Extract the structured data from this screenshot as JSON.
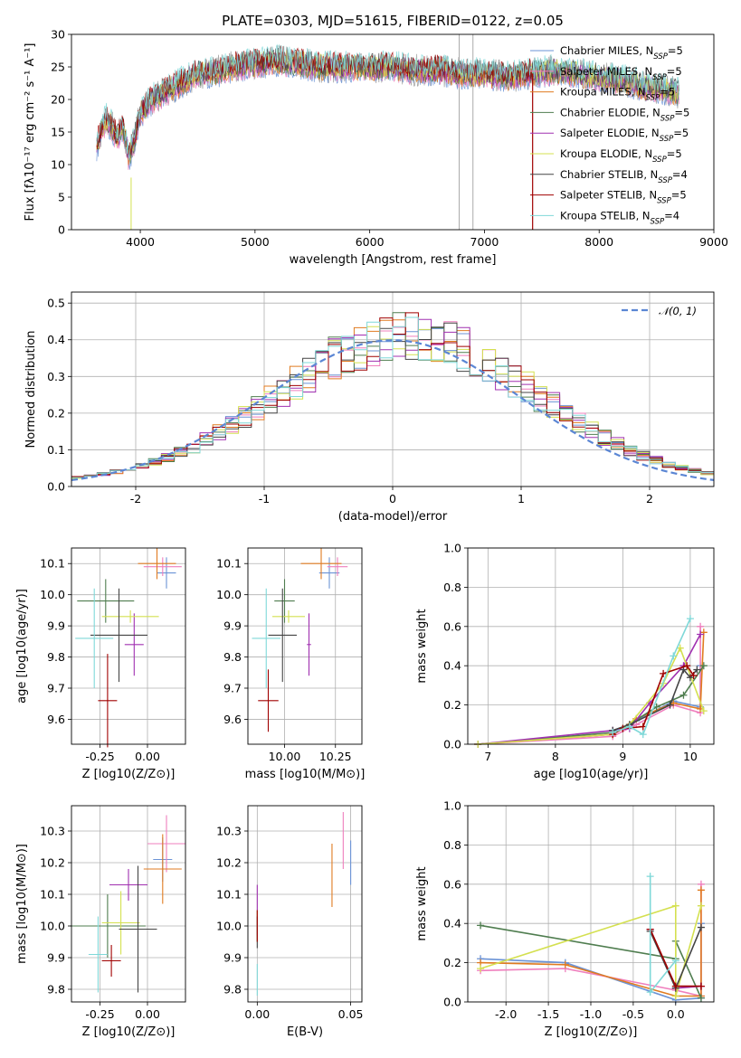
{
  "colors": {
    "Chabrier MILES": "#6b93d6",
    "Salpeter MILES": "#ef7fbd",
    "Kroupa MILES": "#e07b20",
    "Chabrier ELODIE": "#4f7d4f",
    "Salpeter ELODIE": "#a030b0",
    "Kroupa ELODIE": "#d4e050",
    "Chabrier STELIB": "#444444",
    "Salpeter STELIB": "#a00000",
    "Kroupa STELIB": "#7fd8d8"
  },
  "chart_data": [
    {
      "type": "line",
      "title": "PLATE=0303, MJD=51615, FIBERID=0122, z=0.05",
      "xlabel": "wavelength [Angstrom, rest frame]",
      "ylabel": "Flux [fλ10⁻¹⁷ erg cm⁻² s⁻¹ A⁻¹]",
      "xlim": [
        3400,
        9000
      ],
      "ylim": [
        0,
        30
      ],
      "xticks": [
        4000,
        5000,
        6000,
        7000,
        8000,
        9000
      ],
      "yticks": [
        0,
        5,
        10,
        15,
        20,
        25,
        30
      ],
      "data_color": "#aaaaaa",
      "continuum": {
        "x": [
          3620,
          3660,
          3700,
          3750,
          3800,
          3850,
          3900,
          3950,
          4000,
          4100,
          4200,
          4300,
          4400,
          4500,
          4600,
          4800,
          5000,
          5200,
          5400,
          5600,
          5800,
          6000,
          6200,
          6400,
          6600,
          6800,
          7000,
          7200,
          7400,
          7600,
          7800,
          8000,
          8200,
          8400,
          8600,
          8700
        ],
        "y": [
          13,
          15,
          17,
          16,
          14,
          16,
          11,
          14,
          18,
          20,
          21,
          22,
          23,
          24,
          24,
          25,
          25.5,
          26,
          25.5,
          25,
          25,
          25,
          25,
          24.5,
          24.5,
          24,
          24,
          23.5,
          24,
          24.5,
          24,
          23.5,
          23,
          22,
          21.5,
          21
        ]
      },
      "series": [
        {
          "name": "Chabrier MILES, N_SSP=5"
        },
        {
          "name": "Salpeter MILES, N_SSP=5"
        },
        {
          "name": "Kroupa MILES, N_SSP=5"
        },
        {
          "name": "Chabrier ELODIE, N_SSP=5"
        },
        {
          "name": "Salpeter ELODIE, N_SSP=5"
        },
        {
          "name": "Kroupa ELODIE, N_SSP=5"
        },
        {
          "name": "Chabrier STELIB, N_SSP=4"
        },
        {
          "name": "Salpeter STELIB, N_SSP=5"
        },
        {
          "name": "Kroupa STELIB, N_SSP=4"
        }
      ]
    },
    {
      "type": "bar",
      "xlabel": "(data-model)/error",
      "ylabel": "Normed distribution",
      "xlim": [
        -2.5,
        2.5
      ],
      "ylim": [
        0,
        0.53
      ],
      "xticks": [
        -2,
        -1,
        0,
        1,
        2
      ],
      "yticks": [
        0.0,
        0.1,
        0.2,
        0.3,
        0.4,
        0.5
      ],
      "legend": "𝒩(0, 1)",
      "normal": {
        "mu": 0,
        "sigma": 1
      },
      "bin_width": 0.1
    },
    {
      "type": "scatter",
      "xlabel": "Z [log10(Z/Z⊙)]",
      "ylabel": "age  [log10(age/yr)]",
      "xlim": [
        -0.4,
        0.2
      ],
      "ylim": [
        9.52,
        10.15
      ],
      "xticks": [
        -0.25,
        0.0
      ],
      "yticks": [
        9.6,
        9.7,
        9.8,
        9.9,
        10.0,
        10.1
      ],
      "points": [
        {
          "x": 0.1,
          "y": 10.07,
          "xerr": 0.05,
          "yerr": 0.05,
          "s": 0
        },
        {
          "x": 0.08,
          "y": 10.09,
          "xerr": 0.1,
          "yerr": 0.03,
          "s": 1
        },
        {
          "x": 0.05,
          "y": 10.1,
          "xerr": 0.1,
          "yerr": 0.05,
          "s": 2
        },
        {
          "x": -0.22,
          "y": 9.98,
          "xerr": 0.15,
          "yerr": 0.07,
          "s": 3
        },
        {
          "x": -0.07,
          "y": 9.84,
          "xerr": 0.05,
          "yerr": 0.1,
          "s": 4
        },
        {
          "x": -0.09,
          "y": 9.93,
          "xerr": 0.15,
          "yerr": 0.02,
          "s": 5
        },
        {
          "x": -0.15,
          "y": 9.87,
          "xerr": 0.15,
          "yerr": 0.15,
          "s": 6
        },
        {
          "x": -0.21,
          "y": 9.66,
          "xerr": 0.05,
          "yerr": 0.15,
          "s": 7
        },
        {
          "x": -0.28,
          "y": 9.86,
          "xerr": 0.1,
          "yerr": 0.16,
          "s": 8
        }
      ]
    },
    {
      "type": "scatter",
      "xlabel": "mass [log10(M/M⊙)]",
      "ylabel": "",
      "xlim": [
        9.82,
        10.38
      ],
      "ylim": [
        9.52,
        10.15
      ],
      "xticks": [
        10.0,
        10.25
      ],
      "yticks": [
        9.6,
        9.7,
        9.8,
        9.9,
        10.0,
        10.1
      ],
      "points": [
        {
          "x": 10.22,
          "y": 10.07,
          "xerr": 0.05,
          "yerr": 0.05,
          "s": 0
        },
        {
          "x": 10.26,
          "y": 10.09,
          "xerr": 0.05,
          "yerr": 0.03,
          "s": 1
        },
        {
          "x": 10.18,
          "y": 10.1,
          "xerr": 0.1,
          "yerr": 0.05,
          "s": 2
        },
        {
          "x": 10.0,
          "y": 9.98,
          "xerr": 0.05,
          "yerr": 0.07,
          "s": 3
        },
        {
          "x": 10.12,
          "y": 9.84,
          "xerr": 0.01,
          "yerr": 0.1,
          "s": 4
        },
        {
          "x": 10.02,
          "y": 9.93,
          "xerr": 0.08,
          "yerr": 0.02,
          "s": 5
        },
        {
          "x": 9.99,
          "y": 9.87,
          "xerr": 0.07,
          "yerr": 0.15,
          "s": 6
        },
        {
          "x": 9.92,
          "y": 9.66,
          "xerr": 0.05,
          "yerr": 0.1,
          "s": 7
        },
        {
          "x": 9.91,
          "y": 9.86,
          "xerr": 0.07,
          "yerr": 0.16,
          "s": 8
        }
      ]
    },
    {
      "type": "line",
      "xlabel": "age  [log10(age/yr)]",
      "ylabel": "mass weight",
      "xlim": [
        6.7,
        10.35
      ],
      "ylim": [
        0,
        1
      ],
      "xticks": [
        7,
        8,
        9,
        10
      ],
      "yticks": [
        0.0,
        0.2,
        0.4,
        0.6,
        0.8,
        1.0
      ],
      "series": [
        {
          "s": 0,
          "x": [
            6.85,
            8.85,
            9.2,
            9.75,
            10.15,
            10.15
          ],
          "y": [
            0.0,
            0.05,
            0.12,
            0.22,
            0.19,
            0.4
          ]
        },
        {
          "s": 1,
          "x": [
            6.85,
            8.85,
            9.2,
            9.75,
            10.15,
            10.15
          ],
          "y": [
            0.0,
            0.04,
            0.1,
            0.2,
            0.16,
            0.6
          ]
        },
        {
          "s": 2,
          "x": [
            6.85,
            8.85,
            9.2,
            9.75,
            10.15,
            10.2
          ],
          "y": [
            0.0,
            0.05,
            0.13,
            0.21,
            0.18,
            0.57
          ]
        },
        {
          "s": 3,
          "x": [
            6.85,
            8.85,
            9.0,
            9.5,
            9.9,
            10.2
          ],
          "y": [
            0.0,
            0.06,
            0.08,
            0.19,
            0.25,
            0.4
          ]
        },
        {
          "s": 4,
          "x": [
            6.85,
            8.85,
            9.1,
            9.4,
            9.9,
            10.15
          ],
          "y": [
            0.0,
            0.07,
            0.08,
            0.21,
            0.4,
            0.56
          ]
        },
        {
          "s": 5,
          "x": [
            6.85,
            8.85,
            9.1,
            9.6,
            9.85,
            10.2
          ],
          "y": [
            0.0,
            0.05,
            0.1,
            0.31,
            0.49,
            0.17
          ]
        },
        {
          "s": 6,
          "x": [
            8.85,
            9.1,
            9.7,
            9.9,
            10.0,
            10.1
          ],
          "y": [
            0.07,
            0.1,
            0.2,
            0.38,
            0.34,
            0.38
          ]
        },
        {
          "s": 7,
          "x": [
            8.85,
            9.0,
            9.3,
            9.6,
            9.95,
            10.05
          ],
          "y": [
            0.05,
            0.08,
            0.09,
            0.36,
            0.4,
            0.35
          ]
        },
        {
          "s": 8,
          "x": [
            8.85,
            9.1,
            9.3,
            9.75,
            10.0
          ],
          "y": [
            0.06,
            0.09,
            0.05,
            0.45,
            0.64
          ]
        }
      ]
    },
    {
      "type": "scatter",
      "xlabel": "Z [log10(Z/Z⊙)]",
      "ylabel": "mass [log10(M/M⊙)]",
      "xlim": [
        -0.4,
        0.2
      ],
      "ylim": [
        9.76,
        10.38
      ],
      "xticks": [
        -0.25,
        0.0
      ],
      "yticks": [
        9.8,
        9.9,
        10.0,
        10.1,
        10.2,
        10.3
      ],
      "points": [
        {
          "x": 0.08,
          "y": 10.21,
          "xerr": 0.05,
          "yerr": 0.07,
          "s": 0
        },
        {
          "x": 0.1,
          "y": 10.26,
          "xerr": 0.1,
          "yerr": 0.09,
          "s": 1
        },
        {
          "x": 0.08,
          "y": 10.18,
          "xerr": 0.1,
          "yerr": 0.11,
          "s": 2
        },
        {
          "x": -0.21,
          "y": 10.0,
          "xerr": 0.2,
          "yerr": 0.1,
          "s": 3
        },
        {
          "x": -0.1,
          "y": 10.13,
          "xerr": 0.1,
          "yerr": 0.05,
          "s": 4
        },
        {
          "x": -0.14,
          "y": 10.01,
          "xerr": 0.1,
          "yerr": 0.1,
          "s": 5
        },
        {
          "x": -0.05,
          "y": 9.99,
          "xerr": 0.1,
          "yerr": 0.2,
          "s": 6
        },
        {
          "x": -0.19,
          "y": 9.89,
          "xerr": 0.05,
          "yerr": 0.05,
          "s": 7
        },
        {
          "x": -0.26,
          "y": 9.91,
          "xerr": 0.05,
          "yerr": 0.12,
          "s": 8
        }
      ]
    },
    {
      "type": "scatter",
      "xlabel": "E(B-V)",
      "ylabel": "",
      "xlim": [
        -0.005,
        0.056
      ],
      "ylim": [
        9.76,
        10.38
      ],
      "xticks": [
        0.0,
        0.05
      ],
      "yticks": [
        9.8,
        9.9,
        10.0,
        10.1,
        10.2,
        10.3
      ],
      "points": [
        {
          "x": 0.05,
          "y": 10.2,
          "yerr": 0.07,
          "s": 0
        },
        {
          "x": 0.046,
          "y": 10.27,
          "yerr": 0.09,
          "s": 1
        },
        {
          "x": 0.04,
          "y": 10.16,
          "yerr": 0.1,
          "s": 2
        },
        {
          "x": 0.0,
          "y": 10.0,
          "yerr": 0.05,
          "s": 3
        },
        {
          "x": 0.0,
          "y": 10.05,
          "yerr": 0.08,
          "s": 4
        },
        {
          "x": 0.0,
          "y": 10.0,
          "yerr": 0.05,
          "s": 5
        },
        {
          "x": 0.0,
          "y": 9.98,
          "yerr": 0.05,
          "s": 6
        },
        {
          "x": 0.0,
          "y": 10.0,
          "yerr": 0.05,
          "s": 7
        },
        {
          "x": 0.0,
          "y": 9.83,
          "yerr": 0.05,
          "s": 8
        }
      ]
    },
    {
      "type": "line",
      "xlabel": "Z [log10(Z/Z⊙)]",
      "ylabel": "mass weight",
      "xlim": [
        -2.45,
        0.45
      ],
      "ylim": [
        0,
        1
      ],
      "xticks": [
        -2.0,
        -1.5,
        -1.0,
        -0.5,
        0.0
      ],
      "yticks": [
        0.0,
        0.2,
        0.4,
        0.6,
        0.8,
        1.0
      ],
      "series": [
        {
          "s": 0,
          "x": [
            -2.3,
            -1.3,
            0.0,
            0.3,
            0.3
          ],
          "y": [
            0.22,
            0.2,
            0.01,
            0.02,
            0.4
          ]
        },
        {
          "s": 1,
          "x": [
            -2.3,
            -1.3,
            0.0,
            0.3,
            0.3
          ],
          "y": [
            0.16,
            0.17,
            0.06,
            0.03,
            0.6
          ]
        },
        {
          "s": 2,
          "x": [
            -2.3,
            -1.3,
            0.0,
            0.3,
            0.3
          ],
          "y": [
            0.2,
            0.19,
            0.03,
            0.03,
            0.57
          ]
        },
        {
          "s": 3,
          "x": [
            -2.3,
            0.0,
            0.0,
            0.3
          ],
          "y": [
            0.39,
            0.22,
            0.31,
            0.02
          ]
        },
        {
          "s": 4,
          "x": [
            -0.3,
            0.0,
            0.3
          ],
          "y": [
            0.37,
            0.07,
            0.08
          ]
        },
        {
          "s": 5,
          "x": [
            -2.3,
            0.0,
            0.0,
            0.3
          ],
          "y": [
            0.17,
            0.49,
            0.03,
            0.49
          ]
        },
        {
          "s": 6,
          "x": [
            -0.3,
            0.0,
            0.3
          ],
          "y": [
            0.36,
            0.07,
            0.38
          ]
        },
        {
          "s": 7,
          "x": [
            -0.3,
            0.0,
            0.3
          ],
          "y": [
            0.37,
            0.08,
            0.08
          ]
        },
        {
          "s": 8,
          "x": [
            -0.3,
            -0.3,
            0.0
          ],
          "y": [
            0.64,
            0.05,
            0.21
          ]
        }
      ]
    }
  ]
}
